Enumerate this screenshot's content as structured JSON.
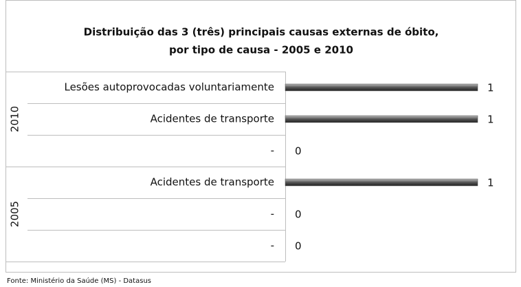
{
  "chart_data": {
    "type": "bar",
    "title": [
      "Distribuição das 3 (três) principais causas externas de óbito,",
      "por tipo de causa - 2005 e 2010"
    ],
    "groups": [
      {
        "name": "2010",
        "categories": [
          "Lesões autoprovocadas voluntariamente",
          "Acidentes de transporte",
          "-"
        ],
        "values": [
          1,
          1,
          0
        ]
      },
      {
        "name": "2005",
        "categories": [
          "Acidentes de transporte",
          "-",
          "-"
        ],
        "values": [
          1,
          0,
          0
        ]
      }
    ],
    "xlim": [
      0,
      1
    ],
    "color": "#555555",
    "source": "Fonte: Ministério da Saúde (MS) - Datasus"
  }
}
